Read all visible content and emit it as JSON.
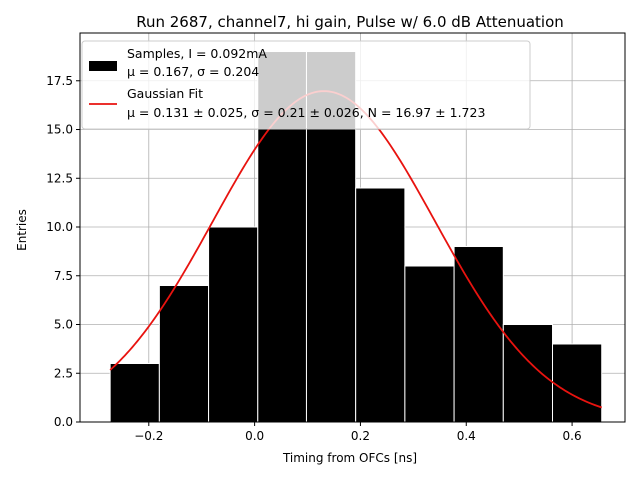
{
  "chart_data": {
    "type": "bar",
    "title": "Run 2687, channel7, hi gain, Pulse w/ 6.0 dB Attenuation",
    "xlabel": "Timing from OFCs [ns]",
    "ylabel": "Entries",
    "xlim": [
      -0.33,
      0.7
    ],
    "ylim": [
      0,
      19.95
    ],
    "x_ticks": [
      -0.2,
      0.0,
      0.2,
      0.4,
      0.6
    ],
    "x_tick_labels": [
      "−0.2",
      "0.0",
      "0.2",
      "0.4",
      "0.6"
    ],
    "y_ticks": [
      0.0,
      2.5,
      5.0,
      7.5,
      10.0,
      12.5,
      15.0,
      17.5
    ],
    "y_tick_labels": [
      "0.0",
      "2.5",
      "5.0",
      "7.5",
      "10.0",
      "12.5",
      "15.0",
      "17.5"
    ],
    "grid": true,
    "legend_position": "top-left",
    "histogram": {
      "name": "Samples, I = 0.092mA",
      "stats_label": "μ = 0.167, σ = 0.204",
      "color": "#000000",
      "bins": [
        {
          "x0": -0.273,
          "x1": -0.18,
          "value": 3
        },
        {
          "x0": -0.18,
          "x1": -0.087,
          "value": 7
        },
        {
          "x0": -0.087,
          "x1": 0.006,
          "value": 10
        },
        {
          "x0": 0.006,
          "x1": 0.098,
          "value": 19
        },
        {
          "x0": 0.098,
          "x1": 0.191,
          "value": 19
        },
        {
          "x0": 0.191,
          "x1": 0.284,
          "value": 12
        },
        {
          "x0": 0.284,
          "x1": 0.377,
          "value": 8
        },
        {
          "x0": 0.377,
          "x1": 0.47,
          "value": 9
        },
        {
          "x0": 0.47,
          "x1": 0.563,
          "value": 5
        },
        {
          "x0": 0.563,
          "x1": 0.656,
          "value": 4
        }
      ]
    },
    "fit": {
      "name": "Gaussian Fit",
      "stats_label": "μ = 0.131 ± 0.025, σ = 0.21 ± 0.026, N = 16.97 ± 1.723",
      "color": "#e8130f",
      "mu": 0.131,
      "sigma": 0.21,
      "N": 16.97,
      "x_range": [
        -0.273,
        0.656
      ]
    }
  }
}
